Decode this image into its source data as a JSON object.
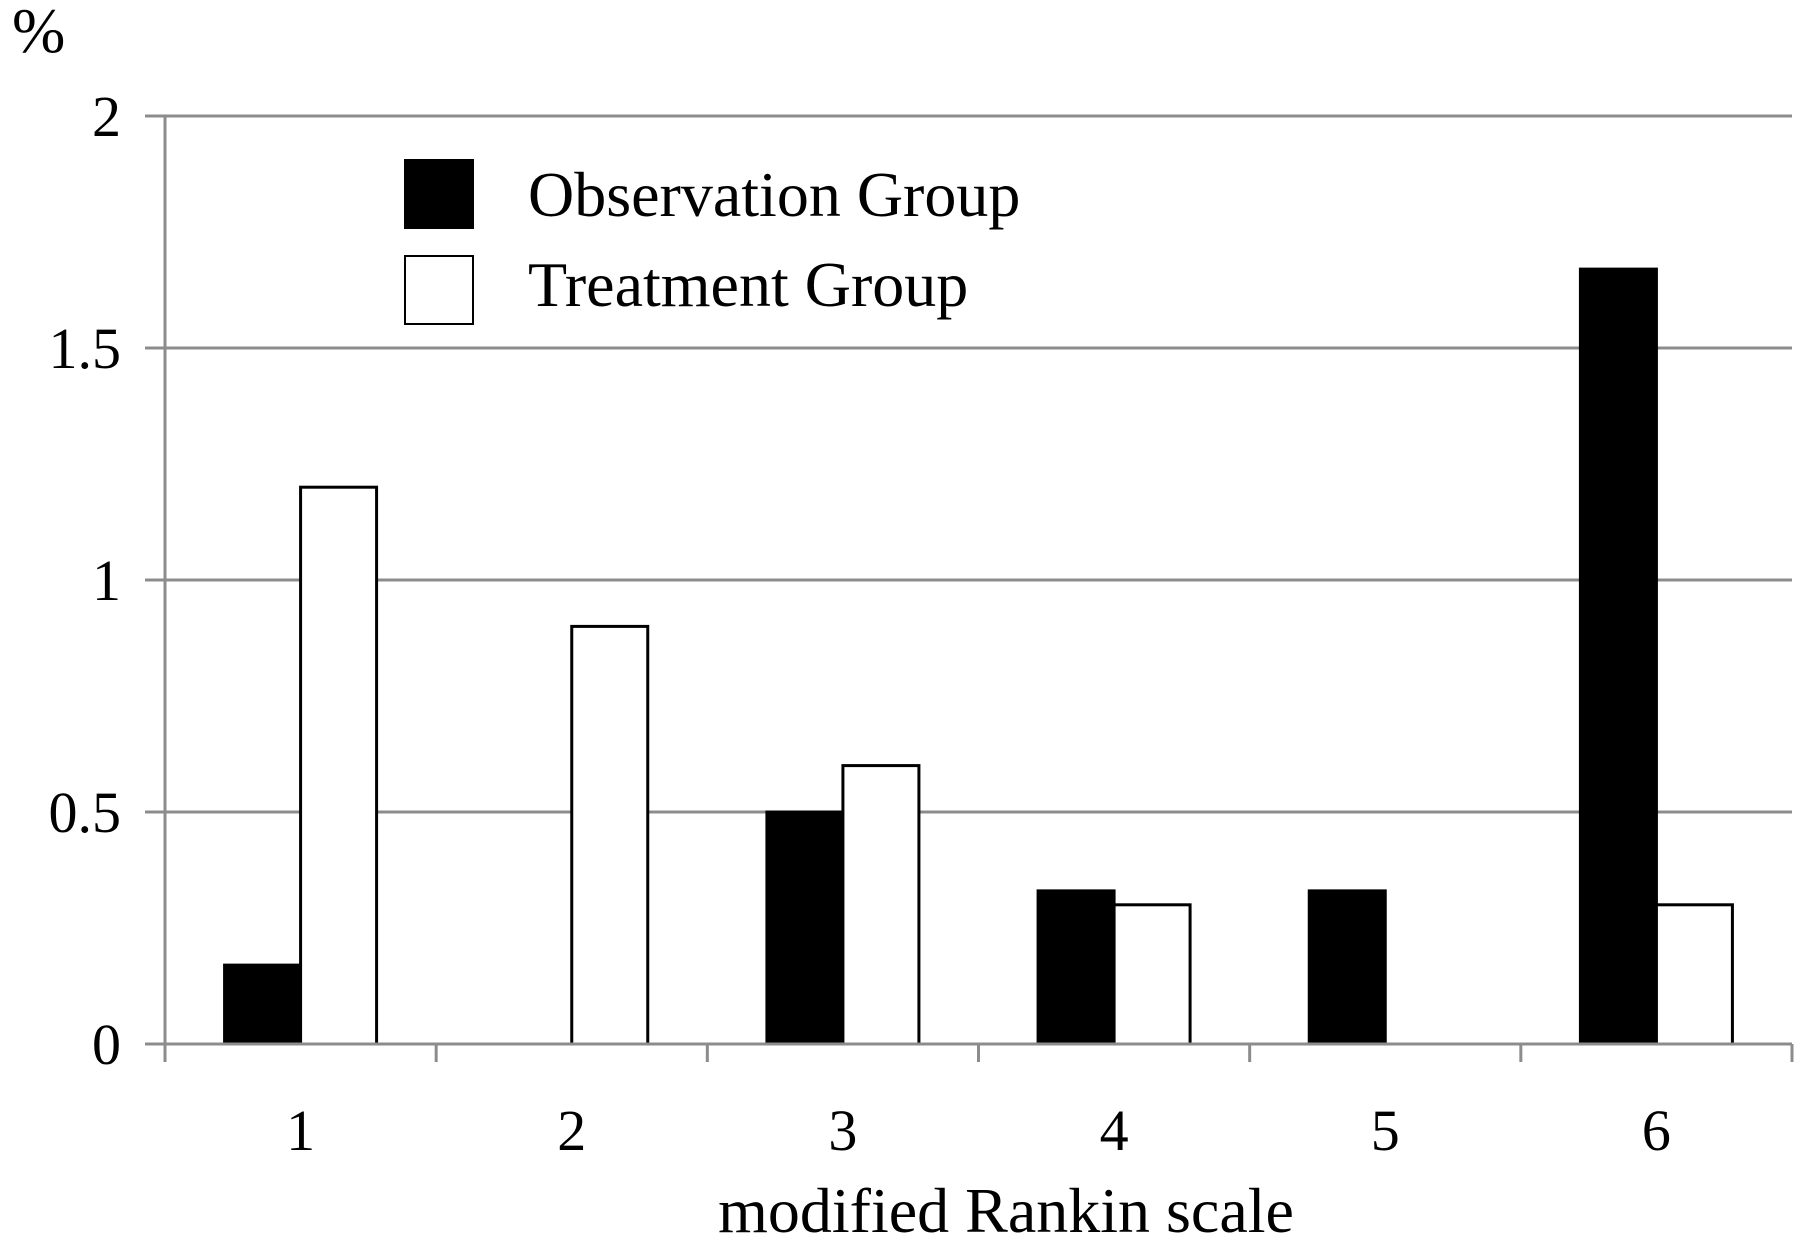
{
  "chart_data": {
    "type": "bar",
    "title": "",
    "xlabel": "modified Rankin scale",
    "ylabel": "%",
    "categories": [
      "1",
      "2",
      "3",
      "4",
      "5",
      "6"
    ],
    "ylim": [
      0,
      2
    ],
    "yticks": [
      "0",
      "0.5",
      "1",
      "1.5",
      "2"
    ],
    "grid": true,
    "legend_position": "top-left",
    "series": [
      {
        "name": "Observation Group",
        "values": [
          0.17,
          0,
          0.5,
          0.33,
          0.33,
          1.67
        ],
        "color": "#000000"
      },
      {
        "name": "Treatment Group",
        "values": [
          1.2,
          0.9,
          0.6,
          0.3,
          0,
          0.3
        ],
        "color": "#ffffff"
      }
    ]
  }
}
